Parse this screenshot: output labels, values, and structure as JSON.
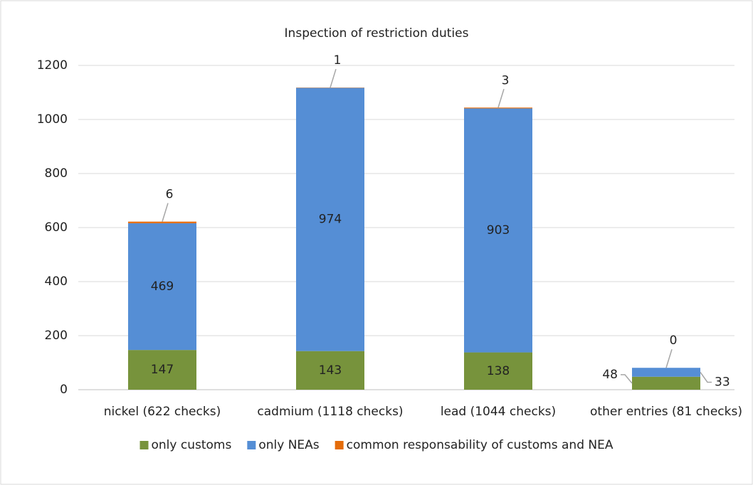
{
  "chart_data": {
    "type": "stacked_bar",
    "title": "Inspection of restriction duties",
    "categories": [
      "nickel (622 checks)",
      "cadmium (1118 checks)",
      "lead (1044 checks)",
      "other entries (81 checks)"
    ],
    "series": [
      {
        "name": "only customs",
        "color": "#77933c",
        "values": [
          147,
          143,
          138,
          48
        ]
      },
      {
        "name": "only NEAs",
        "color": "#558ed5",
        "values": [
          469,
          974,
          903,
          33
        ]
      },
      {
        "name": "common responsability of customs and NEA",
        "color": "#e46c0a",
        "values": [
          6,
          1,
          3,
          0
        ]
      }
    ],
    "ylim": [
      0,
      1200
    ],
    "yticks": [
      0,
      200,
      400,
      600,
      800,
      1000,
      1200
    ],
    "grid": true,
    "legend": "bottom"
  }
}
